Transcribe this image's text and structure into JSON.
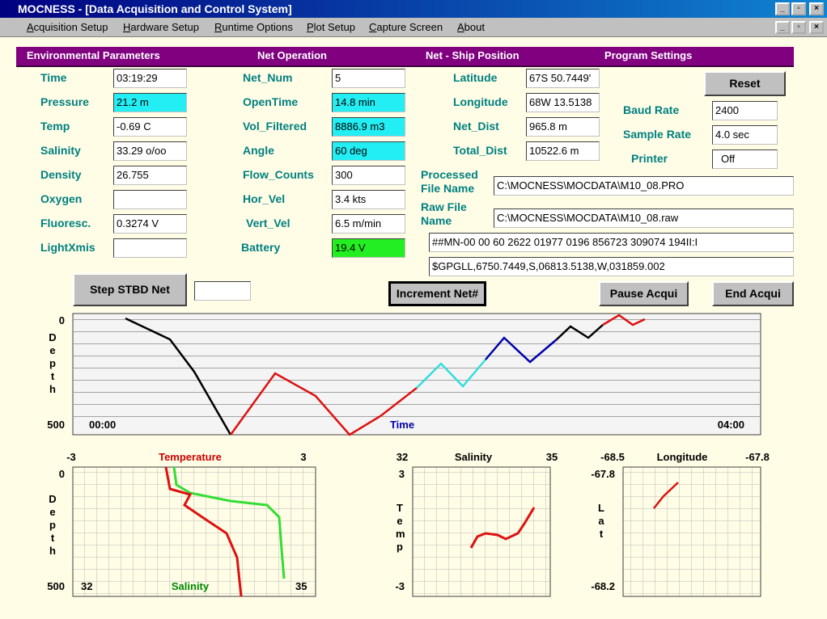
{
  "window": {
    "title": "MOCNESS - [Data Acquisition and Control System]"
  },
  "menu": [
    "Acquisition Setup",
    "Hardware Setup",
    "Runtime Options",
    "Plot Setup",
    "Capture Screen",
    "About"
  ],
  "sections": [
    "Environmental Parameters",
    "Net Operation",
    "Net - Ship Position",
    "Program Settings"
  ],
  "environmental": [
    {
      "label": "Time",
      "value": "03:19:29"
    },
    {
      "label": "Pressure",
      "value": "21.2 m",
      "color": "#22eef4"
    },
    {
      "label": "Temp",
      "value": "-0.69 C"
    },
    {
      "label": "Salinity",
      "value": "33.29 o/oo"
    },
    {
      "label": "Density",
      "value": "26.755"
    },
    {
      "label": "Oxygen"
    },
    {
      "label": "Fluoresc.",
      "value": "0.3274 V"
    },
    {
      "label": "LightXmis"
    }
  ],
  "net_operation": [
    {
      "label": "Net_Num",
      "value": "5"
    },
    {
      "label": "OpenTime",
      "value": "14.8 min",
      "color": "#22eef4"
    },
    {
      "label": "Vol_Filtered",
      "value": "8886.9 m3",
      "color": "#22eef4"
    },
    {
      "label": "Angle",
      "value": "60 deg",
      "color": "#22eef4"
    },
    {
      "label": "Flow_Counts",
      "value": "300"
    },
    {
      "label": "Hor_Vel",
      "value": "3.4 kts"
    },
    {
      "label": "Vert_Vel",
      "value": "6.5 m/min"
    },
    {
      "label": "Battery",
      "value": "19.4 V",
      "color": "#22ee22"
    }
  ],
  "position": [
    {
      "label": "Latitude",
      "value": "67S 50.7449'"
    },
    {
      "label": "Longitude",
      "value": "68W 13.5138"
    },
    {
      "label": "Net_Dist",
      "value": "965.8 m"
    },
    {
      "label": "Total_Dist",
      "value": "10522.6 m"
    }
  ],
  "settings": [
    {
      "label": "Baud Rate",
      "value": "2400"
    },
    {
      "label": "Sample Rate",
      "value": "4.0 sec"
    },
    {
      "label": "Printer",
      "value": "Off"
    }
  ],
  "files": [
    {
      "label": "Processed File Name",
      "value": "C:\\MOCNESS\\MOCDATA\\M10_08.PRO"
    },
    {
      "label": "Raw File Name",
      "value": "C:\\MOCNESS\\MOCDATA\\M10_08.raw"
    }
  ],
  "streams": [
    "##MN-00 00 60 2622 01977 0196 856723 309074 194II:I",
    "$GPGLL,6750.7449,S,06813.5138,W,031859.002"
  ],
  "buttons": {
    "reset": "Reset",
    "step": "Step STBD Net",
    "increment": "Increment Net#",
    "pause": "Pause Acqui",
    "end": "End Acqui"
  },
  "depth_plot": {
    "ylabel": "Depth",
    "ytop": 0,
    "ybottom": 500,
    "xstart": "00:00",
    "xlabel": "Time",
    "xend": "04:00"
  },
  "ts_depth_plot": {
    "title": "Temperature",
    "tmin": -3,
    "tmax": 3,
    "ylabel": "Depth",
    "ytop": 0,
    "ybottom": 500,
    "xlabel": "Salinity",
    "smin": 32,
    "smax": 35
  },
  "ts_plot": {
    "title": "Salinity",
    "xmin": 32,
    "xmax": 35,
    "ylabel": "Temp",
    "ytop": 3,
    "ybottom": -3
  },
  "track_plot": {
    "title": "Longitude",
    "xmin": -68.5,
    "xmax": -67.8,
    "ylabel": "Lat",
    "ytop": -67.8,
    "ybottom": -68.2
  }
}
